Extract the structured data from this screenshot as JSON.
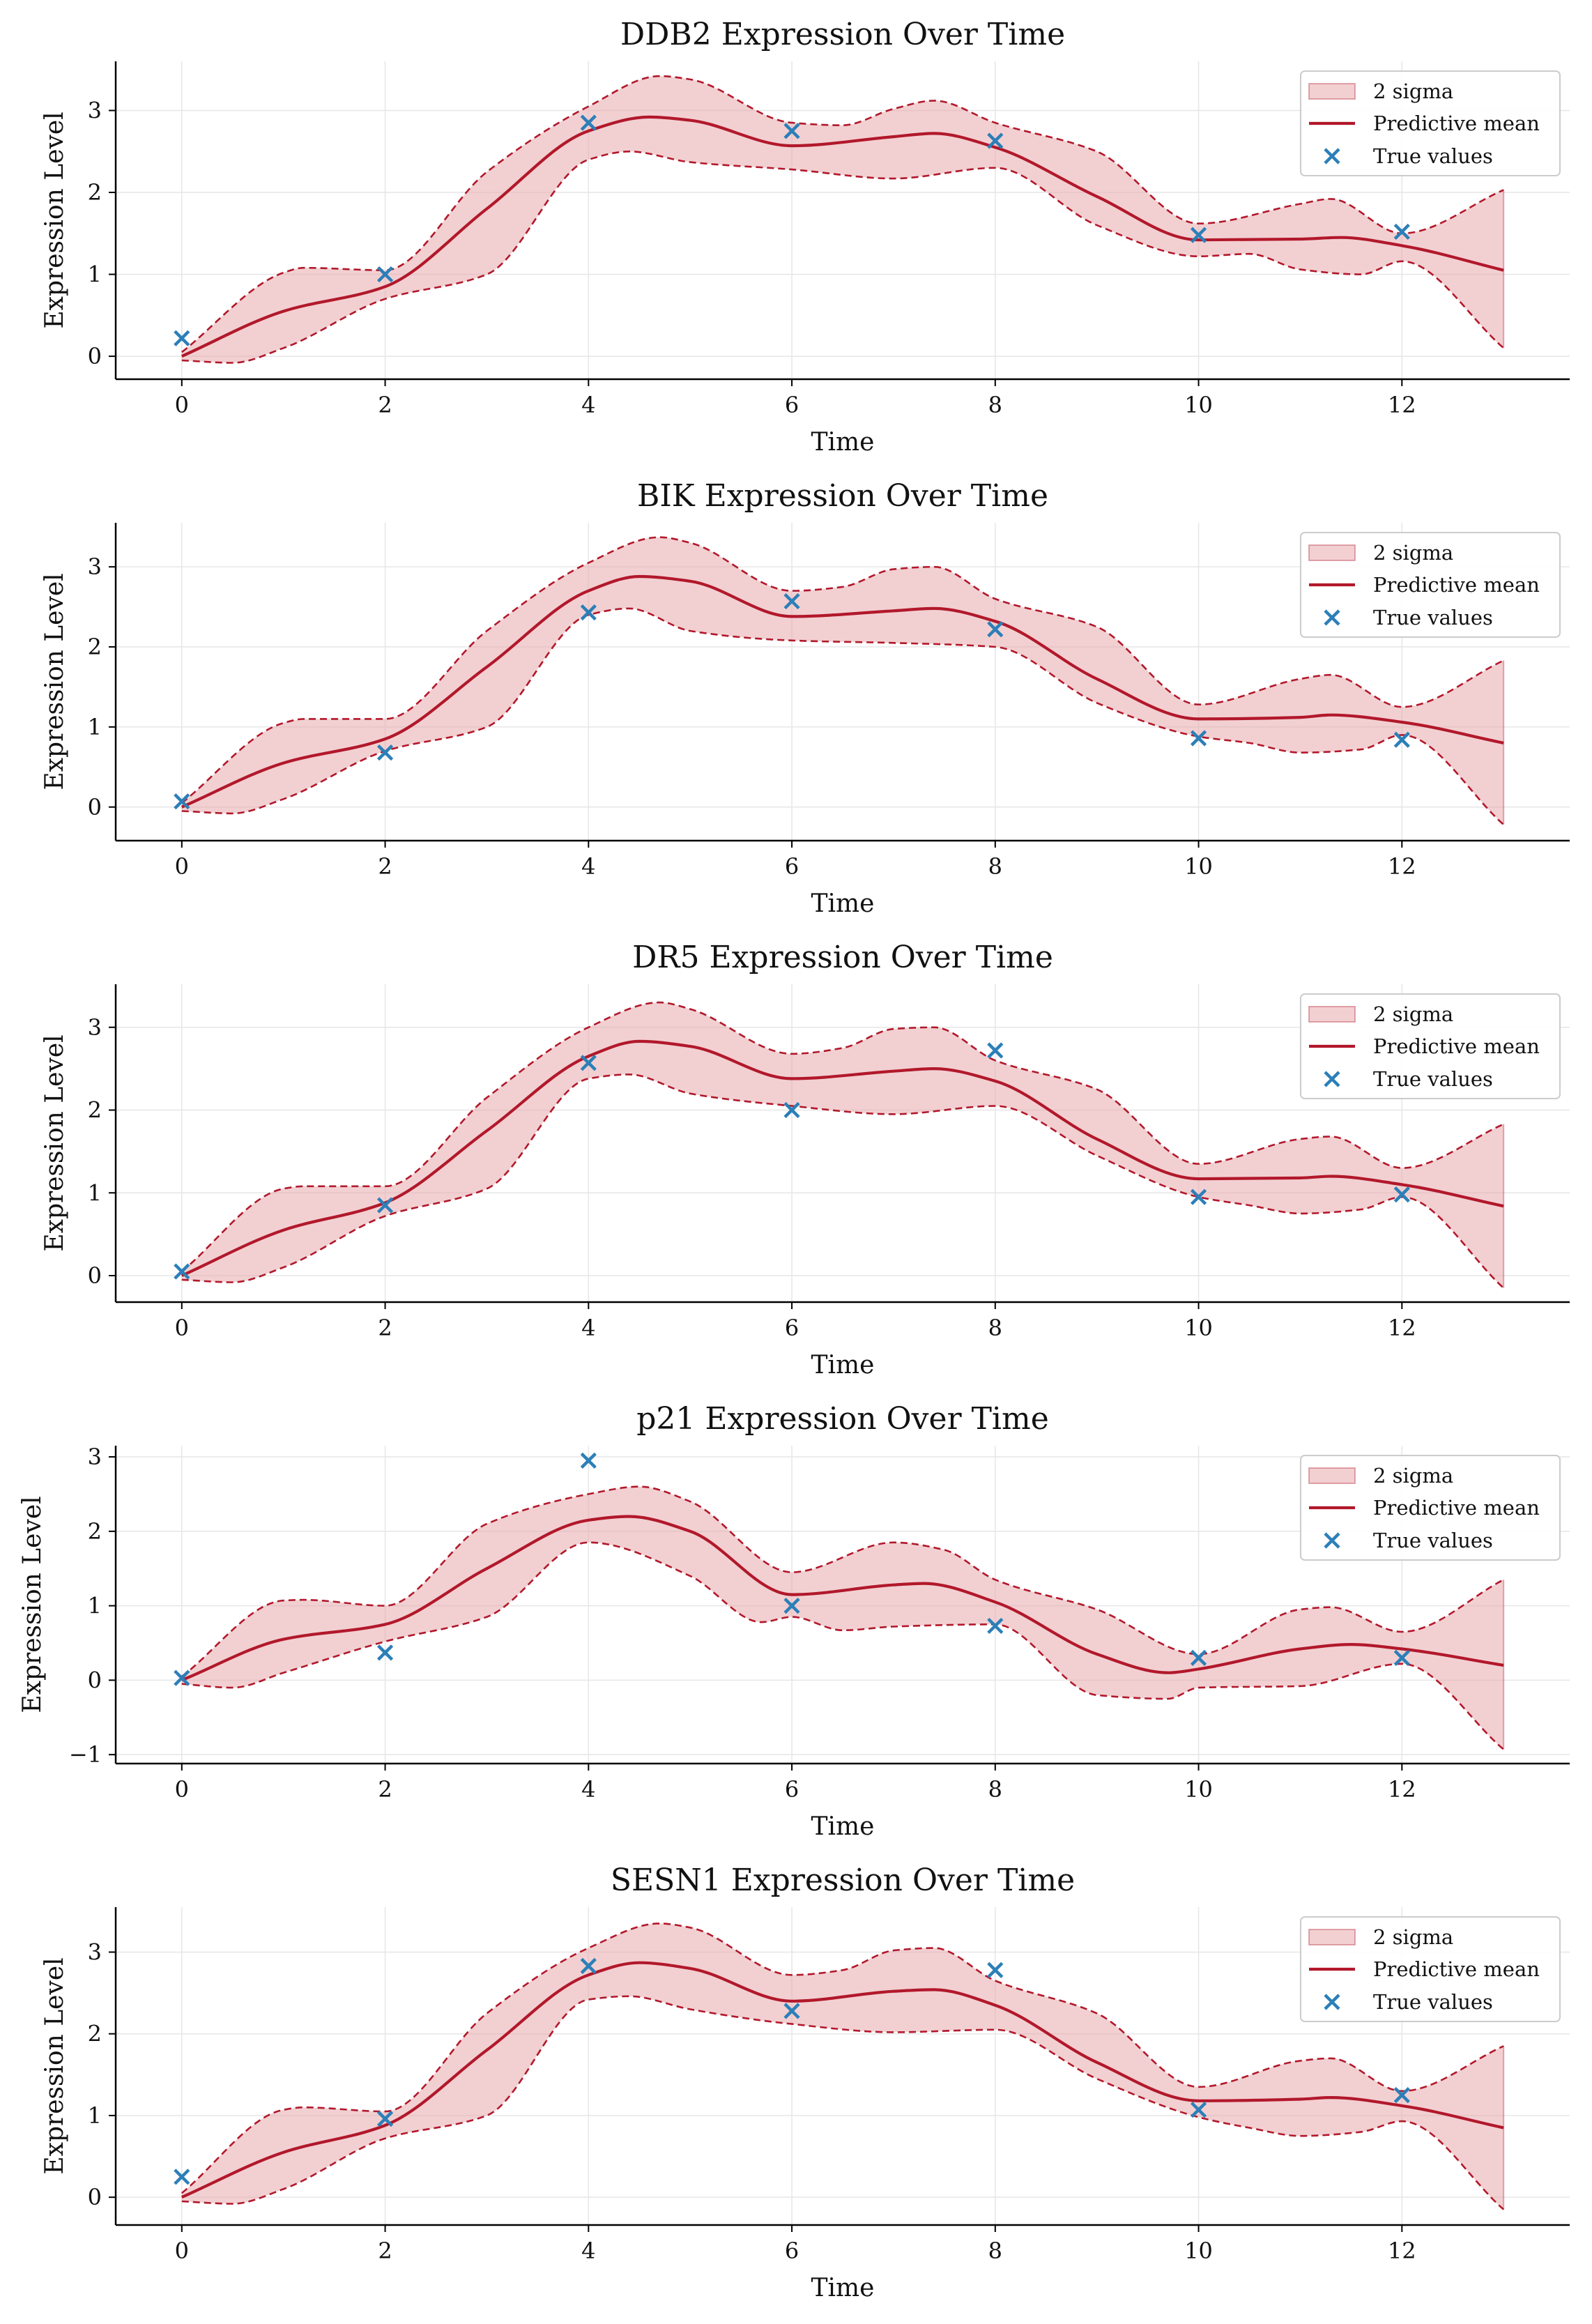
{
  "colors": {
    "band_fill": "#e8a9ad",
    "band_edge": "#b2182b",
    "mean_line": "#b2182b",
    "points": "#2c7fb8",
    "grid": "#e6e6e6",
    "axis": "#000000"
  },
  "legend_labels": {
    "band": "2 sigma",
    "mean": "Predictive mean",
    "points": "True values"
  },
  "chart_data": [
    {
      "type": "line",
      "title": "DDB2 Expression Over Time",
      "xlabel": "Time",
      "ylabel": "Expression Level",
      "xlim": [
        -0.65,
        13.65
      ],
      "ylim": [
        -0.28,
        3.6
      ],
      "xticks": [
        0,
        2,
        4,
        6,
        8,
        10,
        12
      ],
      "yticks": [
        0,
        1,
        2,
        3
      ],
      "grid": true,
      "legend": "upper right",
      "true_values": {
        "x": [
          0,
          2,
          4,
          6,
          8,
          10,
          12
        ],
        "y": [
          0.22,
          1.0,
          2.85,
          2.75,
          2.63,
          1.48,
          1.52
        ]
      },
      "mean": {
        "x": [
          0,
          1,
          2,
          3,
          4,
          4.6,
          5,
          6,
          7,
          7.4,
          8,
          9,
          10,
          11,
          11.4,
          12,
          13
        ],
        "y": [
          0.0,
          0.55,
          0.85,
          1.8,
          2.75,
          2.92,
          2.88,
          2.57,
          2.68,
          2.72,
          2.55,
          1.95,
          1.42,
          1.43,
          1.45,
          1.35,
          1.05
        ]
      },
      "band_upper": {
        "x": [
          0,
          1,
          1.2,
          2,
          3,
          4,
          4.7,
          5,
          6,
          6.5,
          7,
          7.4,
          8,
          9,
          10,
          11,
          11.3,
          12,
          13
        ],
        "y": [
          0.05,
          1.02,
          1.08,
          1.05,
          2.25,
          3.05,
          3.42,
          3.38,
          2.85,
          2.82,
          3.02,
          3.12,
          2.85,
          2.5,
          1.62,
          1.86,
          1.92,
          1.5,
          2.03
        ]
      },
      "band_lower": {
        "x": [
          0,
          0.5,
          1,
          2,
          3,
          4,
          4.4,
          5,
          6,
          7,
          8,
          9,
          10,
          10.5,
          11,
          11.6,
          12,
          13
        ],
        "y": [
          -0.05,
          -0.08,
          0.1,
          0.7,
          1.0,
          2.4,
          2.5,
          2.37,
          2.28,
          2.17,
          2.3,
          1.6,
          1.22,
          1.25,
          1.06,
          1.0,
          1.16,
          0.1
        ]
      }
    },
    {
      "type": "line",
      "title": "BIK Expression Over Time",
      "xlabel": "Time",
      "ylabel": "Expression Level",
      "xlim": [
        -0.65,
        13.65
      ],
      "ylim": [
        -0.42,
        3.55
      ],
      "xticks": [
        0,
        2,
        4,
        6,
        8,
        10,
        12
      ],
      "yticks": [
        0,
        1,
        2,
        3
      ],
      "grid": true,
      "legend": "upper right",
      "true_values": {
        "x": [
          0,
          2,
          4,
          6,
          8,
          10,
          12
        ],
        "y": [
          0.07,
          0.68,
          2.43,
          2.57,
          2.22,
          0.86,
          0.84
        ]
      },
      "mean": {
        "x": [
          0,
          1,
          2,
          3,
          4,
          4.5,
          5,
          6,
          7,
          7.4,
          8,
          9,
          10,
          11,
          11.3,
          12,
          13
        ],
        "y": [
          0.0,
          0.55,
          0.85,
          1.75,
          2.7,
          2.88,
          2.82,
          2.38,
          2.45,
          2.48,
          2.32,
          1.6,
          1.1,
          1.12,
          1.15,
          1.06,
          0.8
        ]
      },
      "band_upper": {
        "x": [
          0,
          1,
          1.2,
          2,
          3,
          4,
          4.7,
          5,
          6,
          6.5,
          7,
          7.4,
          8,
          9,
          10,
          11,
          11.3,
          12,
          13
        ],
        "y": [
          0.05,
          1.05,
          1.1,
          1.1,
          2.2,
          3.05,
          3.37,
          3.3,
          2.7,
          2.75,
          2.97,
          3.0,
          2.6,
          2.25,
          1.28,
          1.6,
          1.65,
          1.25,
          1.83
        ]
      },
      "band_lower": {
        "x": [
          0,
          0.5,
          1,
          2,
          3,
          4,
          4.4,
          5,
          6,
          7,
          8,
          9,
          10,
          10.5,
          11,
          11.6,
          12,
          13
        ],
        "y": [
          -0.05,
          -0.08,
          0.1,
          0.7,
          1.0,
          2.4,
          2.48,
          2.2,
          2.08,
          2.05,
          2.0,
          1.3,
          0.88,
          0.8,
          0.68,
          0.72,
          0.9,
          -0.22
        ]
      }
    },
    {
      "type": "line",
      "title": "DR5 Expression Over Time",
      "xlabel": "Time",
      "ylabel": "Expression Level",
      "xlim": [
        -0.65,
        13.65
      ],
      "ylim": [
        -0.32,
        3.52
      ],
      "xticks": [
        0,
        2,
        4,
        6,
        8,
        10,
        12
      ],
      "yticks": [
        0,
        1,
        2,
        3
      ],
      "grid": true,
      "legend": "upper right",
      "true_values": {
        "x": [
          0,
          2,
          4,
          6,
          8,
          10,
          12
        ],
        "y": [
          0.05,
          0.85,
          2.57,
          2.0,
          2.72,
          0.95,
          0.98
        ]
      },
      "mean": {
        "x": [
          0,
          1,
          2,
          3,
          4,
          4.5,
          5,
          6,
          7,
          7.4,
          8,
          9,
          10,
          11,
          11.3,
          12,
          13
        ],
        "y": [
          0.0,
          0.55,
          0.88,
          1.75,
          2.65,
          2.83,
          2.77,
          2.38,
          2.47,
          2.5,
          2.35,
          1.65,
          1.17,
          1.18,
          1.2,
          1.1,
          0.84
        ]
      },
      "band_upper": {
        "x": [
          0,
          1,
          1.2,
          2,
          3,
          4,
          4.7,
          5,
          6,
          6.5,
          7,
          7.4,
          8,
          9,
          10,
          11,
          11.3,
          12,
          13
        ],
        "y": [
          0.05,
          1.05,
          1.08,
          1.08,
          2.15,
          3.0,
          3.3,
          3.22,
          2.68,
          2.75,
          2.98,
          3.0,
          2.6,
          2.25,
          1.35,
          1.65,
          1.68,
          1.3,
          1.83
        ]
      },
      "band_lower": {
        "x": [
          0,
          0.5,
          1,
          2,
          3,
          4,
          4.4,
          5,
          6,
          7,
          8,
          9,
          10,
          10.5,
          11,
          11.6,
          12,
          13
        ],
        "y": [
          -0.05,
          -0.08,
          0.1,
          0.72,
          1.05,
          2.38,
          2.43,
          2.2,
          2.05,
          1.95,
          2.05,
          1.45,
          0.95,
          0.85,
          0.75,
          0.8,
          0.95,
          -0.15
        ]
      }
    },
    {
      "type": "line",
      "title": "p21 Expression Over Time",
      "xlabel": "Time",
      "ylabel": "Expression Level",
      "xlim": [
        -0.65,
        13.65
      ],
      "ylim": [
        -1.12,
        3.15
      ],
      "xticks": [
        0,
        2,
        4,
        6,
        8,
        10,
        12
      ],
      "yticks": [
        -1,
        0,
        1,
        2,
        3
      ],
      "grid": true,
      "legend": "upper right",
      "true_values": {
        "x": [
          0,
          2,
          4,
          6,
          8,
          10,
          12
        ],
        "y": [
          0.03,
          0.37,
          2.95,
          1.0,
          0.73,
          0.3,
          0.3
        ]
      },
      "mean": {
        "x": [
          0,
          1,
          2,
          3,
          4,
          4.4,
          5,
          6,
          7,
          7.3,
          8,
          9,
          9.7,
          10,
          11,
          11.5,
          12,
          13
        ],
        "y": [
          0.0,
          0.55,
          0.75,
          1.5,
          2.15,
          2.2,
          2.0,
          1.15,
          1.28,
          1.3,
          1.05,
          0.35,
          0.1,
          0.15,
          0.42,
          0.48,
          0.42,
          0.2
        ]
      },
      "band_upper": {
        "x": [
          0,
          1,
          1.2,
          2,
          3,
          4,
          4.5,
          5,
          6,
          7,
          7.5,
          8,
          9,
          10,
          11,
          11.3,
          12,
          13
        ],
        "y": [
          0.05,
          1.07,
          1.08,
          1.0,
          2.1,
          2.5,
          2.6,
          2.4,
          1.45,
          1.85,
          1.75,
          1.35,
          0.95,
          0.35,
          0.95,
          0.98,
          0.65,
          1.35
        ]
      },
      "band_lower": {
        "x": [
          0,
          0.5,
          1,
          2,
          3,
          4,
          5,
          5.7,
          6,
          6.5,
          7,
          8,
          9,
          9.7,
          10,
          11,
          12,
          13
        ],
        "y": [
          -0.05,
          -0.1,
          0.1,
          0.52,
          0.85,
          1.85,
          1.4,
          0.78,
          0.85,
          0.67,
          0.72,
          0.75,
          -0.2,
          -0.25,
          -0.1,
          -0.08,
          0.22,
          -0.93
        ]
      }
    },
    {
      "type": "line",
      "title": "SESN1 Expression Over Time",
      "xlabel": "Time",
      "ylabel": "Expression Level",
      "xlim": [
        -0.65,
        13.65
      ],
      "ylim": [
        -0.34,
        3.55
      ],
      "xticks": [
        0,
        2,
        4,
        6,
        8,
        10,
        12
      ],
      "yticks": [
        0,
        1,
        2,
        3
      ],
      "grid": true,
      "legend": "upper right",
      "true_values": {
        "x": [
          0,
          2,
          4,
          6,
          8,
          10,
          12
        ],
        "y": [
          0.25,
          0.96,
          2.83,
          2.28,
          2.78,
          1.07,
          1.25
        ]
      },
      "mean": {
        "x": [
          0,
          1,
          2,
          3,
          4,
          4.5,
          5,
          6,
          7,
          7.4,
          8,
          9,
          10,
          11,
          11.3,
          12,
          13
        ],
        "y": [
          0.0,
          0.55,
          0.88,
          1.8,
          2.72,
          2.87,
          2.8,
          2.4,
          2.52,
          2.54,
          2.35,
          1.65,
          1.18,
          1.2,
          1.22,
          1.12,
          0.85
        ]
      },
      "band_upper": {
        "x": [
          0,
          1,
          1.2,
          2,
          3,
          4,
          4.7,
          5,
          6,
          6.5,
          7,
          7.4,
          8,
          9,
          10,
          11,
          11.3,
          12,
          13
        ],
        "y": [
          0.05,
          1.07,
          1.1,
          1.05,
          2.25,
          3.05,
          3.35,
          3.3,
          2.72,
          2.78,
          3.02,
          3.05,
          2.65,
          2.25,
          1.35,
          1.67,
          1.7,
          1.3,
          1.85
        ]
      },
      "band_lower": {
        "x": [
          0,
          0.5,
          1,
          2,
          3,
          4,
          4.4,
          5,
          6,
          7,
          8,
          9,
          10,
          10.5,
          11,
          11.6,
          12,
          13
        ],
        "y": [
          -0.05,
          -0.08,
          0.1,
          0.72,
          1.0,
          2.42,
          2.46,
          2.3,
          2.12,
          2.02,
          2.05,
          1.45,
          0.98,
          0.85,
          0.75,
          0.8,
          0.93,
          -0.15
        ]
      }
    }
  ]
}
